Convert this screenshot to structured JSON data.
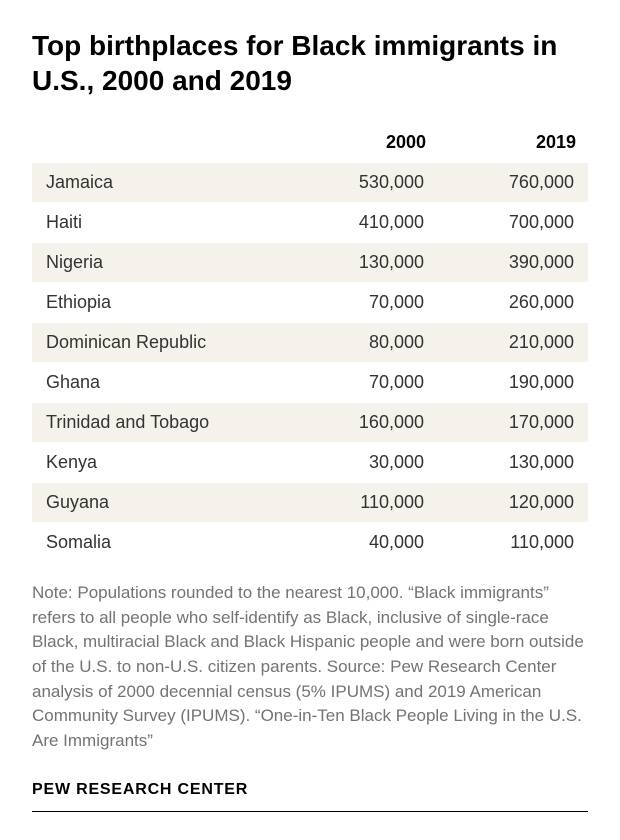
{
  "title": "Top birthplaces for Black immigrants in U.S., 2000 and 2019",
  "columns": [
    "",
    "2000",
    "2019"
  ],
  "rows": [
    {
      "name": "Jamaica",
      "v2000": "530,000",
      "v2019": "760,000"
    },
    {
      "name": "Haiti",
      "v2000": "410,000",
      "v2019": "700,000"
    },
    {
      "name": "Nigeria",
      "v2000": "130,000",
      "v2019": "390,000"
    },
    {
      "name": "Ethiopia",
      "v2000": "70,000",
      "v2019": "260,000"
    },
    {
      "name": "Dominican Republic",
      "v2000": "80,000",
      "v2019": "210,000"
    },
    {
      "name": "Ghana",
      "v2000": "70,000",
      "v2019": "190,000"
    },
    {
      "name": "Trinidad and Tobago",
      "v2000": "160,000",
      "v2019": "170,000"
    },
    {
      "name": "Kenya",
      "v2000": "30,000",
      "v2019": "130,000"
    },
    {
      "name": "Guyana",
      "v2000": "110,000",
      "v2019": "120,000"
    },
    {
      "name": "Somalia",
      "v2000": "40,000",
      "v2019": "110,000"
    }
  ],
  "note": "Note: Populations rounded to the nearest 10,000. “Black immigrants” refers to all people who self-identify as Black, inclusive of single-race Black, multiracial Black and Black Hispanic people and were born outside of the U.S. to non-U.S. citizen parents. Source: Pew Research Center analysis of 2000 decennial census (5% IPUMS) and 2019 American Community Survey (IPUMS). “One-in-Ten Black People Living in the U.S. Are Immigrants”",
  "footer": "PEW RESEARCH CENTER",
  "styling": {
    "row_even_bg": "#f4f2eb",
    "row_odd_bg": "#ffffff",
    "note_color": "#737373",
    "title_fontsize": 28,
    "cell_fontsize": 18,
    "note_fontsize": 17,
    "footer_fontsize": 16
  }
}
